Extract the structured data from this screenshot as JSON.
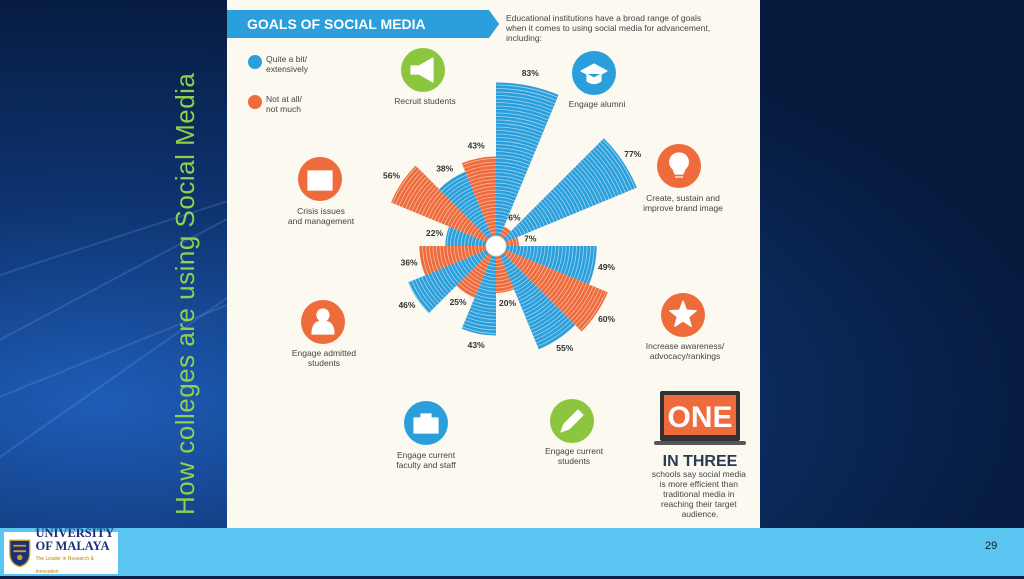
{
  "slide": {
    "side_title": "How colleges are using Social Media",
    "page_number": "29"
  },
  "logo": {
    "line1": "UNIVERSITY",
    "line2": "OF MALAYA",
    "motto": "The Leader in Research & Innovation"
  },
  "infographic": {
    "banner": "GOALS OF SOCIAL MEDIA",
    "intro": [
      "Educational institutions have a broad range of goals",
      "when it comes to using social media for advancement,",
      "including:"
    ],
    "legend": [
      {
        "label": [
          "Quite a bit/",
          "extensively"
        ],
        "color": "#2b9fdc"
      },
      {
        "label": [
          "Not at all/",
          "not much"
        ],
        "color": "#ee6b3b"
      }
    ],
    "one_in_three": {
      "big": "ONE",
      "sub": "IN THREE",
      "text": [
        "schools say social media",
        "is more efficient than",
        "traditional media in",
        "reaching their target",
        "audience."
      ]
    }
  },
  "chart_data": {
    "type": "radial-bar",
    "title": "GOALS OF SOCIAL MEDIA",
    "series": [
      {
        "name": "Quite a bit/ extensively",
        "color": "#2b9fdc"
      },
      {
        "name": "Not at all/ not much",
        "color": "#ee6b3b"
      }
    ],
    "categories": [
      {
        "label": [
          "Engage alumni"
        ],
        "icon": "graduation-cap-icon",
        "quite_a_bit": 83,
        "not_much": 6
      },
      {
        "label": [
          "Create, sustain and",
          "improve brand image"
        ],
        "icon": "lightbulb-icon",
        "quite_a_bit": 77,
        "not_much": 7
      },
      {
        "label": [
          "Increase awareness/",
          "advocacy/rankings"
        ],
        "icon": "star-icon",
        "quite_a_bit": 49,
        "not_much": 60
      },
      {
        "label": [
          "Engage current",
          "students"
        ],
        "icon": "pencil-icon",
        "quite_a_bit": 55,
        "not_much": 20
      },
      {
        "label": [
          "Engage current",
          "faculty and staff"
        ],
        "icon": "briefcase-icon",
        "quite_a_bit": 43,
        "not_much": 25
      },
      {
        "label": [
          "Engage admitted",
          "students"
        ],
        "icon": "person-icon",
        "quite_a_bit": 46,
        "not_much": 36
      },
      {
        "label": [
          "Crisis issues",
          "and management"
        ],
        "icon": "first-aid-icon",
        "quite_a_bit": 22,
        "not_much": 56
      },
      {
        "label": [
          "Recruit students"
        ],
        "icon": "megaphone-icon",
        "quite_a_bit": 38,
        "not_much": 43
      }
    ]
  }
}
